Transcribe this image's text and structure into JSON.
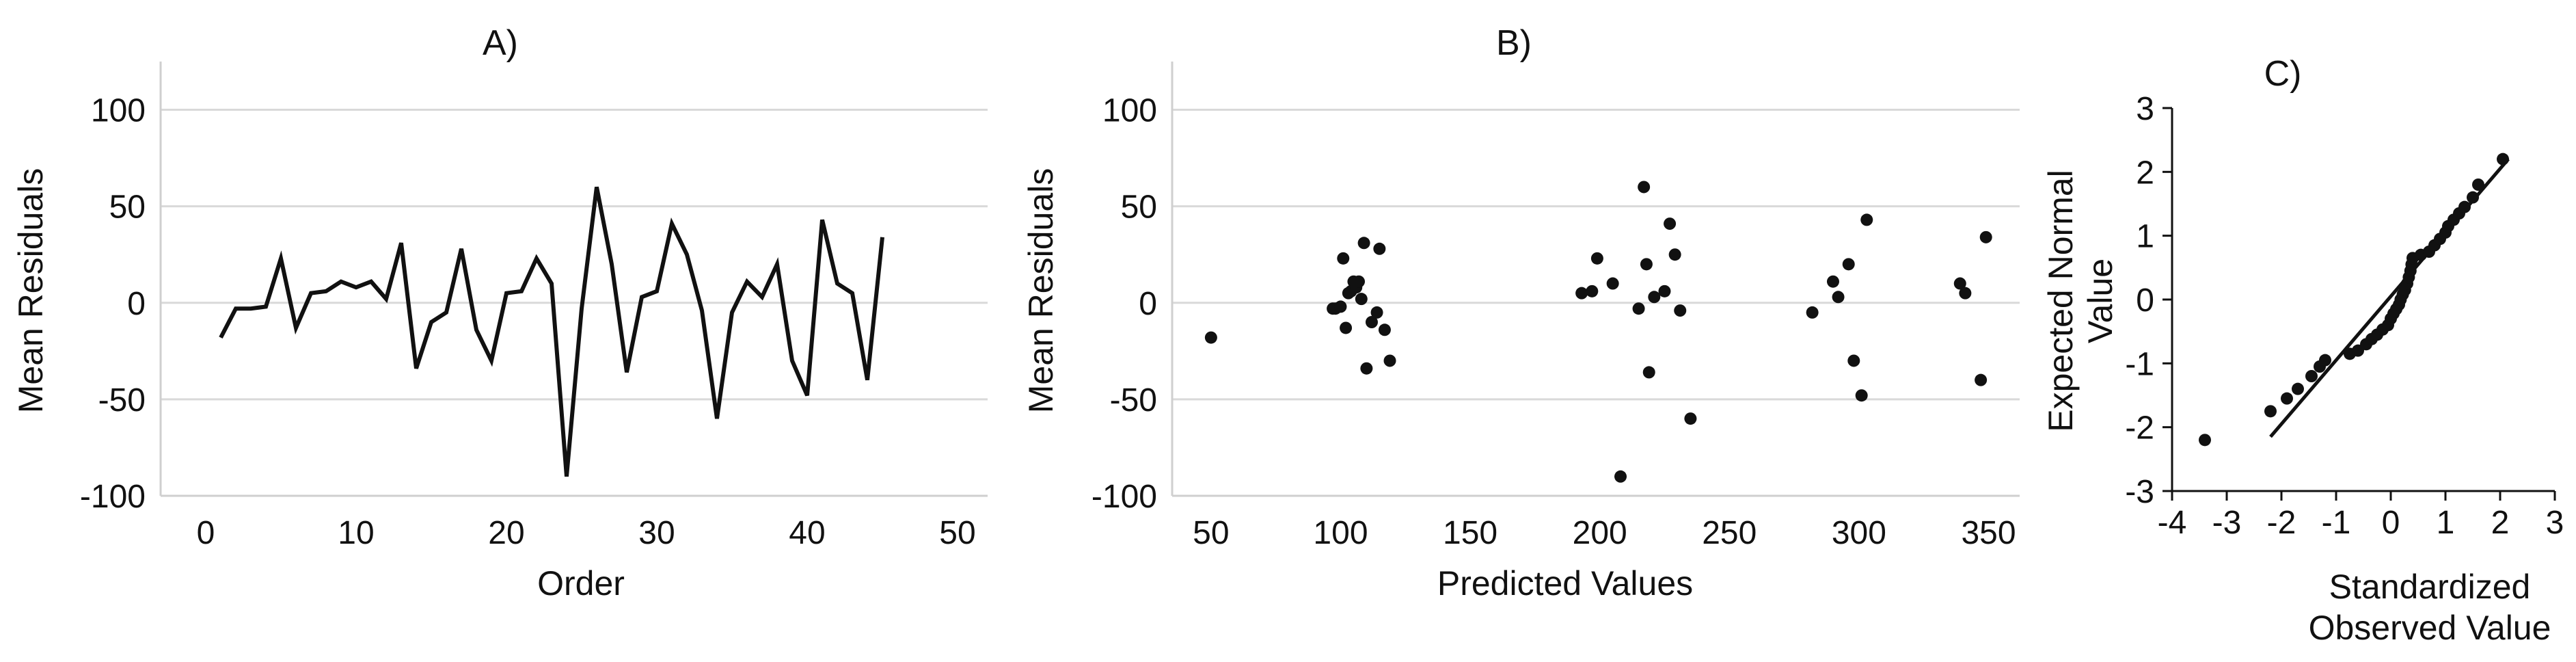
{
  "chart_data": [
    {
      "panel_label": "A)",
      "type": "line",
      "xlabel": "Order",
      "ylabel": "Mean Residuals",
      "xlim": [
        -3,
        52
      ],
      "ylim": [
        -100,
        125
      ],
      "xticks": [
        0,
        10,
        20,
        30,
        40,
        50
      ],
      "yticks": [
        -100,
        -50,
        0,
        50,
        100
      ],
      "grid": "horizontal",
      "series": [
        {
          "x": [
            1,
            2,
            3,
            4,
            5,
            6,
            7,
            8,
            9,
            10,
            11,
            12,
            13,
            14,
            15,
            16,
            17,
            18,
            19,
            20,
            21,
            22,
            23,
            24,
            25,
            26,
            27,
            28,
            29,
            30,
            31,
            32,
            33,
            34,
            35,
            36,
            37,
            38,
            39,
            40,
            41,
            42,
            43,
            44,
            45
          ],
          "values": [
            -18,
            -3,
            -3,
            -2,
            23,
            -13,
            5,
            6,
            11,
            8,
            11,
            2,
            31,
            -34,
            -10,
            -5,
            28,
            -14,
            -30,
            5,
            6,
            23,
            10,
            -90,
            -3,
            60,
            20,
            -36,
            3,
            6,
            41,
            25,
            -4,
            -60,
            -5,
            11,
            3,
            20,
            -30,
            -48,
            43,
            10,
            5,
            -40,
            34
          ]
        }
      ]
    },
    {
      "panel_label": "B)",
      "type": "scatter",
      "xlabel": "Predicted Values",
      "ylabel": "Mean Residuals",
      "xlim": [
        35,
        362
      ],
      "ylim": [
        -100,
        125
      ],
      "xticks": [
        50,
        100,
        150,
        200,
        250,
        300,
        350
      ],
      "yticks": [
        -100,
        -50,
        0,
        50,
        100
      ],
      "grid": "horizontal",
      "series": [
        {
          "points": [
            [
              50,
              -18
            ],
            [
              97,
              -3
            ],
            [
              98,
              -3
            ],
            [
              100,
              -2
            ],
            [
              101,
              23
            ],
            [
              102,
              -13
            ],
            [
              103,
              5
            ],
            [
              104,
              6
            ],
            [
              105,
              11
            ],
            [
              106,
              8
            ],
            [
              107,
              11
            ],
            [
              108,
              2
            ],
            [
              109,
              31
            ],
            [
              110,
              -34
            ],
            [
              112,
              -10
            ],
            [
              114,
              -5
            ],
            [
              115,
              28
            ],
            [
              117,
              -14
            ],
            [
              119,
              -30
            ],
            [
              193,
              5
            ],
            [
              197,
              6
            ],
            [
              199,
              23
            ],
            [
              205,
              10
            ],
            [
              208,
              -90
            ],
            [
              215,
              -3
            ],
            [
              217,
              60
            ],
            [
              218,
              20
            ],
            [
              219,
              -36
            ],
            [
              221,
              3
            ],
            [
              225,
              6
            ],
            [
              227,
              41
            ],
            [
              229,
              25
            ],
            [
              231,
              -4
            ],
            [
              235,
              -60
            ],
            [
              282,
              -5
            ],
            [
              290,
              11
            ],
            [
              292,
              3
            ],
            [
              296,
              20
            ],
            [
              298,
              -30
            ],
            [
              301,
              -48
            ],
            [
              303,
              43
            ],
            [
              339,
              10
            ],
            [
              341,
              5
            ],
            [
              347,
              -40
            ],
            [
              349,
              34
            ]
          ]
        }
      ]
    },
    {
      "panel_label": "C)",
      "type": "scatter",
      "xlabel": [
        "Standardized",
        "Observed Value"
      ],
      "ylabel": [
        "Expected Normal",
        "Value"
      ],
      "xlim": [
        -4,
        3
      ],
      "ylim": [
        -3,
        3
      ],
      "xticks": [
        -4,
        -3,
        -2,
        -1,
        0,
        1,
        2,
        3
      ],
      "yticks": [
        -3,
        -2,
        -1,
        0,
        1,
        2,
        3
      ],
      "grid": "none",
      "reference_line": [
        [
          -2.2,
          -2.15
        ],
        [
          2.15,
          2.2
        ]
      ],
      "series": [
        {
          "points": [
            [
              -3.4,
              -2.2
            ],
            [
              -2.2,
              -1.75
            ],
            [
              -1.9,
              -1.55
            ],
            [
              -1.7,
              -1.4
            ],
            [
              -1.45,
              -1.2
            ],
            [
              -1.3,
              -1.05
            ],
            [
              -1.2,
              -0.95
            ],
            [
              -0.75,
              -0.85
            ],
            [
              -0.6,
              -0.8
            ],
            [
              -0.45,
              -0.7
            ],
            [
              -0.35,
              -0.62
            ],
            [
              -0.25,
              -0.55
            ],
            [
              -0.15,
              -0.47
            ],
            [
              -0.05,
              -0.4
            ],
            [
              0.0,
              -0.3
            ],
            [
              0.05,
              -0.22
            ],
            [
              0.1,
              -0.15
            ],
            [
              0.15,
              -0.08
            ],
            [
              0.18,
              0.0
            ],
            [
              0.22,
              0.08
            ],
            [
              0.26,
              0.15
            ],
            [
              0.3,
              0.25
            ],
            [
              0.33,
              0.35
            ],
            [
              0.36,
              0.45
            ],
            [
              0.38,
              0.55
            ],
            [
              0.4,
              0.65
            ],
            [
              0.55,
              0.7
            ],
            [
              0.7,
              0.75
            ],
            [
              0.8,
              0.85
            ],
            [
              0.9,
              0.95
            ],
            [
              1.0,
              1.05
            ],
            [
              1.05,
              1.15
            ],
            [
              1.15,
              1.25
            ],
            [
              1.25,
              1.35
            ],
            [
              1.35,
              1.45
            ],
            [
              1.5,
              1.6
            ],
            [
              1.6,
              1.8
            ],
            [
              2.05,
              2.2
            ]
          ]
        }
      ]
    }
  ]
}
